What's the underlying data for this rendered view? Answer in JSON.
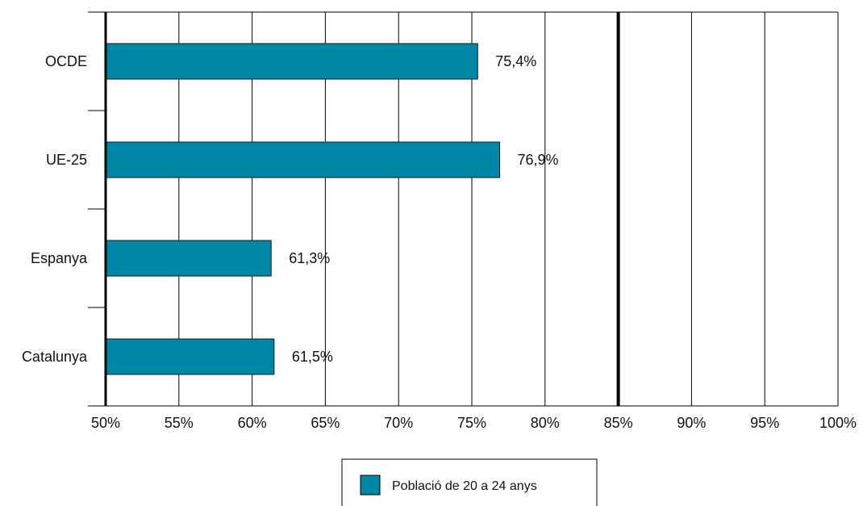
{
  "chart_data": {
    "type": "bar",
    "orientation": "horizontal",
    "categories": [
      "OCDE",
      "UE-25",
      "Espanya",
      "Catalunya"
    ],
    "series": [
      {
        "name": "Població de 20 a 24 anys",
        "values": [
          75.4,
          76.9,
          61.3,
          61.5
        ],
        "value_labels": [
          "75,4%",
          "76,9%",
          "61,3%",
          "61,5%"
        ],
        "color": "#0087A8"
      }
    ],
    "xlim": [
      50,
      100
    ],
    "x_ticks": [
      50,
      55,
      60,
      65,
      70,
      75,
      80,
      85,
      90,
      95,
      100
    ],
    "x_tick_labels": [
      "50%",
      "55%",
      "60%",
      "65%",
      "70%",
      "75%",
      "80%",
      "85%",
      "90%",
      "95%",
      "100%"
    ],
    "reference_line": 85,
    "grid": true,
    "legend_position": "bottom-center",
    "title": "",
    "xlabel": "",
    "ylabel": ""
  }
}
